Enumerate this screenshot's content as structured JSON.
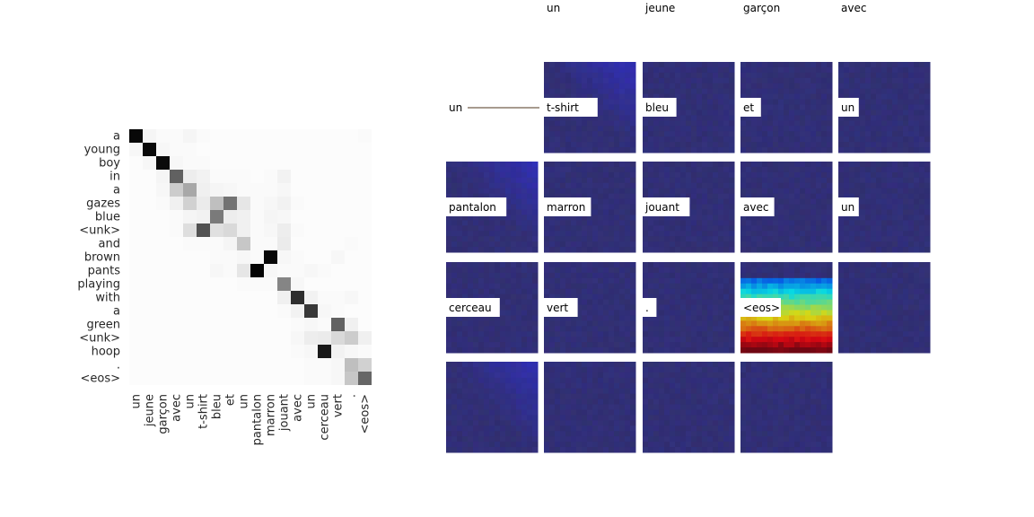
{
  "chart_data": [
    {
      "type": "heatmap",
      "title": "",
      "xlabel": "",
      "ylabel": "",
      "colormap": "Greys",
      "value_range": [
        0,
        1
      ],
      "y_labels": [
        "a",
        "young",
        "boy",
        "in",
        "a",
        "gazes",
        "blue",
        "<unk>",
        "and",
        "brown",
        "pants",
        "playing",
        "with",
        "a",
        "green",
        "<unk>",
        "hoop",
        ".",
        "<eos>"
      ],
      "x_labels": [
        "un",
        "jeune",
        "garçon",
        "avec",
        "un",
        "t-shirt",
        "bleu",
        "et",
        "un",
        "pantalon",
        "marron",
        "jouant",
        "avec",
        "un",
        "cerceau",
        "vert",
        ".",
        "<eos>"
      ],
      "values": [
        [
          0.97,
          0.04,
          0.02,
          0.02,
          0.04,
          0.02,
          0.01,
          0.01,
          0.01,
          0.01,
          0.01,
          0.01,
          0.01,
          0.01,
          0.01,
          0.01,
          0.01,
          0.02
        ],
        [
          0.03,
          0.96,
          0.03,
          0.02,
          0.02,
          0.01,
          0.01,
          0.01,
          0.01,
          0.01,
          0.01,
          0.01,
          0.01,
          0.01,
          0.01,
          0.01,
          0.01,
          0.01
        ],
        [
          0.01,
          0.03,
          0.96,
          0.03,
          0.02,
          0.02,
          0.01,
          0.01,
          0.01,
          0.01,
          0.01,
          0.01,
          0.01,
          0.01,
          0.01,
          0.01,
          0.01,
          0.01
        ],
        [
          0.01,
          0.01,
          0.04,
          0.62,
          0.07,
          0.05,
          0.02,
          0.02,
          0.02,
          0.01,
          0.02,
          0.05,
          0.01,
          0.01,
          0.01,
          0.01,
          0.01,
          0.01
        ],
        [
          0.01,
          0.01,
          0.03,
          0.2,
          0.34,
          0.06,
          0.04,
          0.03,
          0.02,
          0.02,
          0.02,
          0.03,
          0.01,
          0.01,
          0.01,
          0.01,
          0.01,
          0.01
        ],
        [
          0.01,
          0.01,
          0.02,
          0.06,
          0.18,
          0.08,
          0.25,
          0.55,
          0.1,
          0.02,
          0.03,
          0.05,
          0.02,
          0.01,
          0.01,
          0.01,
          0.01,
          0.01
        ],
        [
          0.01,
          0.01,
          0.01,
          0.02,
          0.04,
          0.05,
          0.52,
          0.07,
          0.06,
          0.02,
          0.04,
          0.03,
          0.01,
          0.01,
          0.01,
          0.01,
          0.01,
          0.01
        ],
        [
          0.01,
          0.01,
          0.01,
          0.02,
          0.13,
          0.68,
          0.12,
          0.15,
          0.06,
          0.02,
          0.03,
          0.07,
          0.02,
          0.01,
          0.01,
          0.01,
          0.01,
          0.01
        ],
        [
          0.01,
          0.01,
          0.01,
          0.01,
          0.02,
          0.02,
          0.02,
          0.04,
          0.22,
          0.02,
          0.02,
          0.08,
          0.01,
          0.01,
          0.01,
          0.01,
          0.02,
          0.01
        ],
        [
          0.01,
          0.01,
          0.01,
          0.01,
          0.01,
          0.01,
          0.02,
          0.02,
          0.03,
          0.02,
          0.97,
          0.03,
          0.02,
          0.01,
          0.01,
          0.03,
          0.01,
          0.01
        ],
        [
          0.01,
          0.01,
          0.01,
          0.01,
          0.01,
          0.01,
          0.03,
          0.02,
          0.1,
          0.98,
          0.03,
          0.02,
          0.02,
          0.03,
          0.02,
          0.01,
          0.01,
          0.01
        ],
        [
          0.01,
          0.01,
          0.01,
          0.01,
          0.01,
          0.01,
          0.01,
          0.01,
          0.02,
          0.02,
          0.02,
          0.48,
          0.03,
          0.01,
          0.01,
          0.01,
          0.01,
          0.01
        ],
        [
          0.01,
          0.01,
          0.01,
          0.01,
          0.01,
          0.01,
          0.01,
          0.01,
          0.01,
          0.01,
          0.01,
          0.06,
          0.82,
          0.05,
          0.02,
          0.02,
          0.03,
          0.01
        ],
        [
          0.01,
          0.01,
          0.01,
          0.01,
          0.01,
          0.01,
          0.01,
          0.01,
          0.01,
          0.01,
          0.01,
          0.02,
          0.05,
          0.78,
          0.03,
          0.02,
          0.01,
          0.01
        ],
        [
          0.01,
          0.01,
          0.01,
          0.01,
          0.01,
          0.01,
          0.01,
          0.01,
          0.01,
          0.01,
          0.01,
          0.01,
          0.02,
          0.03,
          0.02,
          0.62,
          0.06,
          0.01
        ],
        [
          0.01,
          0.01,
          0.01,
          0.01,
          0.01,
          0.01,
          0.01,
          0.01,
          0.01,
          0.01,
          0.01,
          0.01,
          0.03,
          0.07,
          0.08,
          0.15,
          0.2,
          0.06
        ],
        [
          0.01,
          0.01,
          0.01,
          0.01,
          0.01,
          0.01,
          0.01,
          0.01,
          0.01,
          0.01,
          0.01,
          0.01,
          0.02,
          0.03,
          0.9,
          0.05,
          0.03,
          0.02
        ],
        [
          0.01,
          0.01,
          0.01,
          0.01,
          0.01,
          0.01,
          0.01,
          0.01,
          0.01,
          0.01,
          0.01,
          0.01,
          0.01,
          0.02,
          0.02,
          0.03,
          0.25,
          0.18
        ],
        [
          0.01,
          0.01,
          0.01,
          0.01,
          0.01,
          0.01,
          0.01,
          0.01,
          0.01,
          0.01,
          0.01,
          0.01,
          0.01,
          0.02,
          0.02,
          0.03,
          0.22,
          0.6
        ]
      ]
    },
    {
      "type": "heatmap",
      "title": "",
      "description_kind": "attention-map-grid",
      "colormap": "jet overlay",
      "column_headers": [
        "un",
        "jeune",
        "garçon",
        "avec"
      ],
      "tiles": [
        {
          "word": "un",
          "map": "none"
        },
        {
          "word": "t-shirt",
          "map": "faint"
        },
        {
          "word": "bleu",
          "map": "faint"
        },
        {
          "word": "et",
          "map": "faint"
        },
        {
          "word": "un",
          "map": "faint"
        },
        {
          "word": "pantalon",
          "map": "faint"
        },
        {
          "word": "marron",
          "map": "faint"
        },
        {
          "word": "jouant",
          "map": "faint"
        },
        {
          "word": "avec",
          "map": "faint"
        },
        {
          "word": "un",
          "map": "faint"
        },
        {
          "word": "cerceau",
          "map": "faint"
        },
        {
          "word": "vert",
          "map": "faint"
        },
        {
          "word": ".",
          "map": "faint"
        },
        {
          "word": "<eos>",
          "map": "strong-bottom"
        },
        {
          "word": "",
          "map": "faint"
        },
        {
          "word": "",
          "map": "faint"
        },
        {
          "word": "",
          "map": "faint"
        },
        {
          "word": "",
          "map": "faint"
        },
        {
          "word": "",
          "map": "faint"
        }
      ],
      "colors": {
        "base": "#2e2d7a",
        "hot": "#c81e1e"
      }
    }
  ]
}
